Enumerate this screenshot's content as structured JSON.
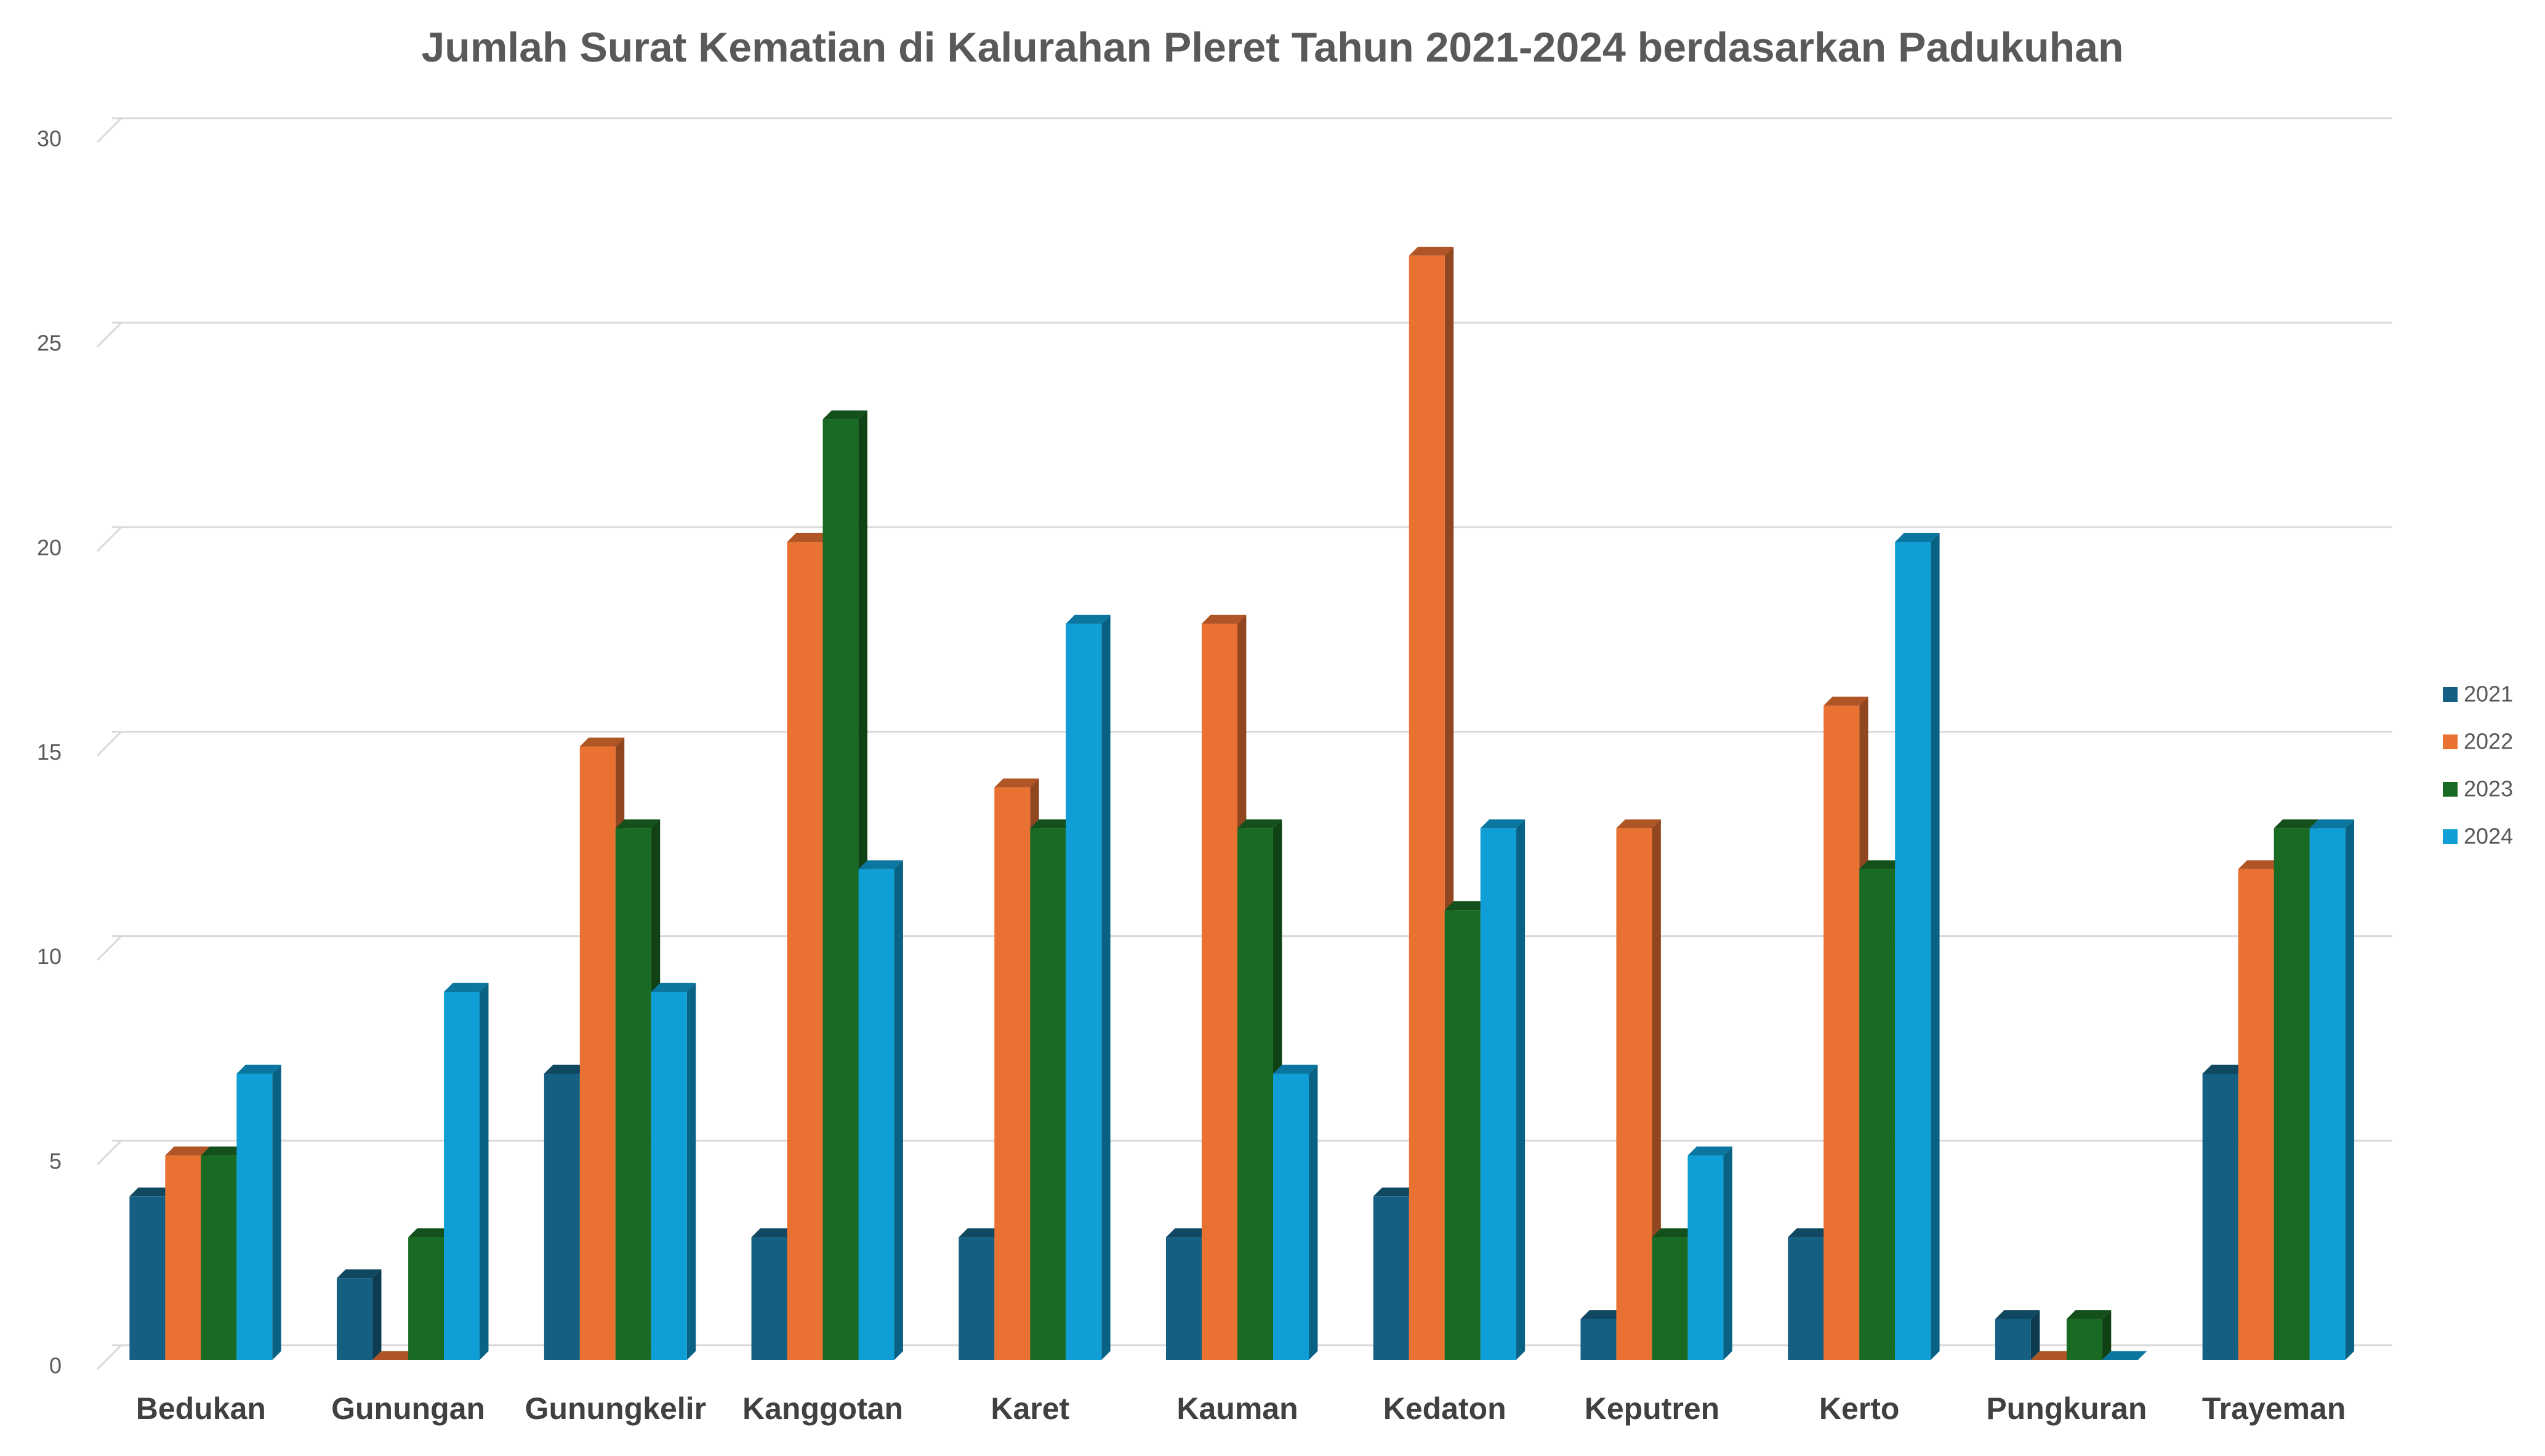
{
  "chart_data": {
    "type": "bar3d",
    "title": "Jumlah Surat Kematian di Kalurahan Pleret Tahun 2021-2024 berdasarkan Padukuhan",
    "categories": [
      "Bedukan",
      "Gunungan",
      "Gunungkelir",
      "Kanggotan",
      "Karet",
      "Kauman",
      "Kedaton",
      "Keputren",
      "Kerto",
      "Pungkuran",
      "Trayeman"
    ],
    "series": [
      {
        "name": "2021",
        "color": "#156082",
        "values": [
          4,
          2,
          7,
          3,
          3,
          3,
          4,
          1,
          3,
          1,
          7
        ]
      },
      {
        "name": "2022",
        "color": "#e97132",
        "values": [
          5,
          0,
          15,
          20,
          14,
          18,
          27,
          13,
          16,
          0,
          12
        ]
      },
      {
        "name": "2023",
        "color": "#196b24",
        "values": [
          5,
          3,
          13,
          23,
          13,
          13,
          11,
          3,
          12,
          1,
          13
        ]
      },
      {
        "name": "2024",
        "color": "#0f9ed5",
        "values": [
          7,
          9,
          9,
          12,
          18,
          7,
          13,
          5,
          20,
          0,
          13
        ]
      }
    ],
    "ylim": [
      0,
      30
    ],
    "yticks": [
      0,
      5,
      10,
      15,
      20,
      25,
      30
    ],
    "grid": true,
    "legend": "right"
  }
}
